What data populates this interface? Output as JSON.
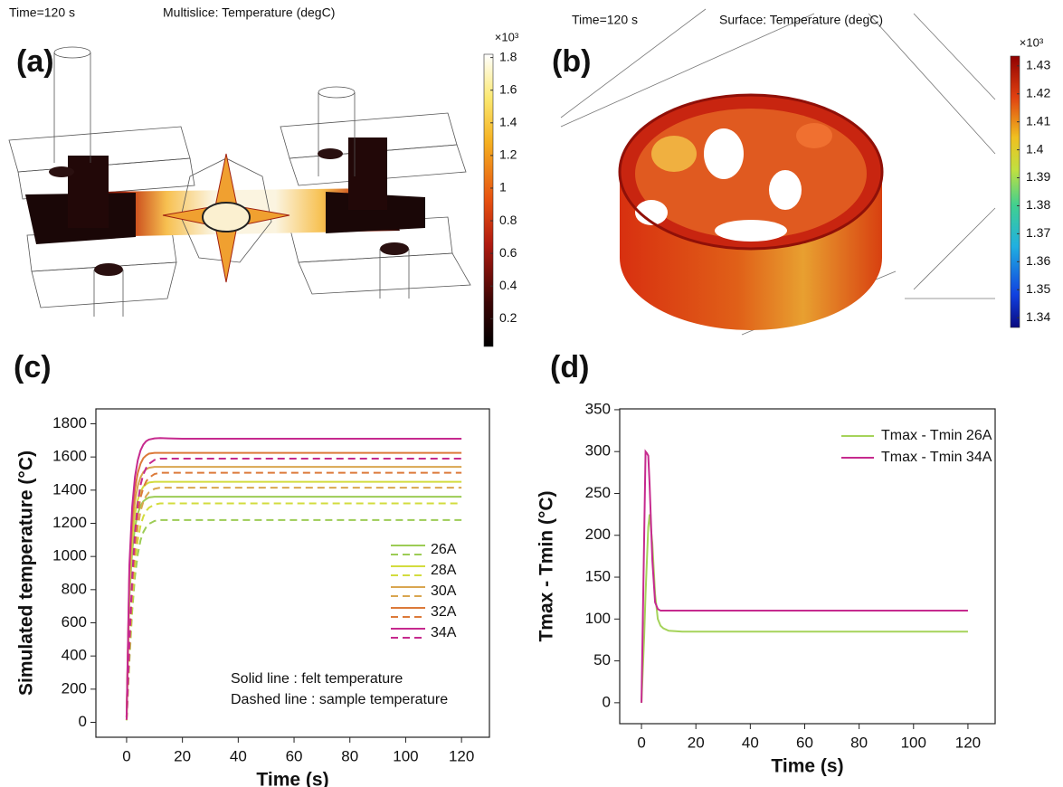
{
  "chart_data": [
    {
      "type": "surface",
      "panel_label": "(a)",
      "time_label": "Time=120 s",
      "title": "Multislice: Temperature (degC)",
      "colorbar_exponent": "×10³",
      "ylim": [
        0.03,
        1.82
      ],
      "yticks": [
        0.2,
        0.4,
        0.6,
        0.8,
        1,
        1.2,
        1.4,
        1.6,
        1.8
      ]
    },
    {
      "type": "surface",
      "panel_label": "(b)",
      "time_label": "Time=120 s",
      "title": "Surface: Temperature (degC)",
      "colorbar_exponent": "×10³",
      "ylim": [
        1.3365,
        1.4335
      ],
      "yticks": [
        1.34,
        1.35,
        1.36,
        1.37,
        1.38,
        1.39,
        1.4,
        1.41,
        1.42,
        1.43
      ]
    },
    {
      "type": "line",
      "panel_label": "(c)",
      "x_label": "Time (s)",
      "y_label": "Simulated temperature (°C)",
      "x": [
        0,
        1,
        2,
        3,
        4,
        5,
        6,
        7,
        8,
        10,
        12,
        15,
        20,
        40,
        60,
        80,
        100,
        120
      ],
      "series": [
        {
          "name": "26A",
          "color": "#9ccc55",
          "values": [
            27,
            755,
            1034,
            1176,
            1258,
            1306,
            1333,
            1346,
            1356,
            1360,
            1360,
            1360,
            1360,
            1360,
            1360,
            1360,
            1360,
            1360
          ],
          "sample_values": [
            12,
            366,
            671,
            878,
            1013,
            1098,
            1147,
            1177,
            1196,
            1214,
            1220,
            1220,
            1220,
            1220,
            1220,
            1220,
            1220,
            1220
          ]
        },
        {
          "name": "28A",
          "color": "#d3dc3e",
          "values": [
            29,
            805,
            1102,
            1254,
            1341,
            1392,
            1421,
            1436,
            1446,
            1450,
            1450,
            1450,
            1450,
            1450,
            1450,
            1450,
            1450,
            1450
          ],
          "sample_values": [
            13,
            396,
            726,
            950,
            1096,
            1188,
            1241,
            1274,
            1294,
            1313,
            1320,
            1320,
            1320,
            1320,
            1320,
            1320,
            1320,
            1320
          ]
        },
        {
          "name": "30A",
          "color": "#d9a650",
          "values": [
            31,
            855,
            1170,
            1332,
            1425,
            1478,
            1509,
            1525,
            1535,
            1540,
            1540,
            1540,
            1540,
            1540,
            1540,
            1540,
            1540,
            1540
          ],
          "sample_values": [
            14,
            425,
            778,
            1019,
            1174,
            1274,
            1330,
            1365,
            1387,
            1408,
            1415,
            1415,
            1415,
            1415,
            1415,
            1415,
            1415,
            1415
          ]
        },
        {
          "name": "32A",
          "color": "#dc7a3a",
          "values": [
            32,
            902,
            1235,
            1406,
            1503,
            1560,
            1593,
            1609,
            1620,
            1625,
            1625,
            1625,
            1625,
            1625,
            1625,
            1625,
            1625,
            1625
          ],
          "sample_values": [
            15,
            452,
            828,
            1084,
            1249,
            1355,
            1415,
            1452,
            1475,
            1497,
            1505,
            1505,
            1505,
            1505,
            1505,
            1505,
            1505,
            1505
          ]
        },
        {
          "name": "34A",
          "color": "#c62a8e",
          "values": [
            30,
            950,
            1300,
            1480,
            1580,
            1640,
            1675,
            1695,
            1705,
            1712,
            1714,
            1712,
            1710,
            1710,
            1710,
            1710,
            1710,
            1710
          ],
          "sample_values": [
            16,
            477,
            875,
            1145,
            1320,
            1431,
            1495,
            1534,
            1558,
            1582,
            1590,
            1590,
            1590,
            1590,
            1590,
            1590,
            1590,
            1590
          ]
        }
      ],
      "annotations": [
        "Solid line : felt temperature",
        "Dashed line : sample temperature"
      ],
      "xlim": [
        -11,
        130
      ],
      "xticks": [
        0,
        20,
        40,
        60,
        80,
        100,
        120
      ],
      "ylim": [
        -90,
        1890
      ],
      "yticks": [
        0,
        200,
        400,
        600,
        800,
        1000,
        1200,
        1400,
        1600,
        1800
      ],
      "legend": "lower right"
    },
    {
      "type": "line",
      "panel_label": "(d)",
      "x_label": "Time (s)",
      "y_label": "Tmax - Tmin (°C)",
      "x": [
        0,
        1,
        1.5,
        2,
        2.5,
        3,
        4,
        5,
        6,
        7,
        8,
        10,
        15,
        20,
        40,
        60,
        80,
        100,
        120
      ],
      "series": [
        {
          "name": "Tmax - Tmin 26A",
          "color": "#a5d35a",
          "values": [
            0,
            80,
            130,
            170,
            210,
            225,
            190,
            130,
            100,
            92,
            89,
            86,
            85,
            85,
            85,
            85,
            85,
            85,
            85
          ]
        },
        {
          "name": "Tmax - Tmin 34A",
          "color": "#c62a8e",
          "values": [
            0,
            200,
            300,
            298,
            295,
            260,
            170,
            120,
            112,
            110,
            110,
            110,
            110,
            110,
            110,
            110,
            110,
            110,
            110
          ]
        }
      ],
      "xlim": [
        -8,
        130
      ],
      "xticks": [
        0,
        20,
        40,
        60,
        80,
        100,
        120
      ],
      "ylim": [
        -25,
        351
      ],
      "yticks": [
        0,
        50,
        100,
        150,
        200,
        250,
        300,
        350
      ],
      "legend": "upper right"
    }
  ]
}
